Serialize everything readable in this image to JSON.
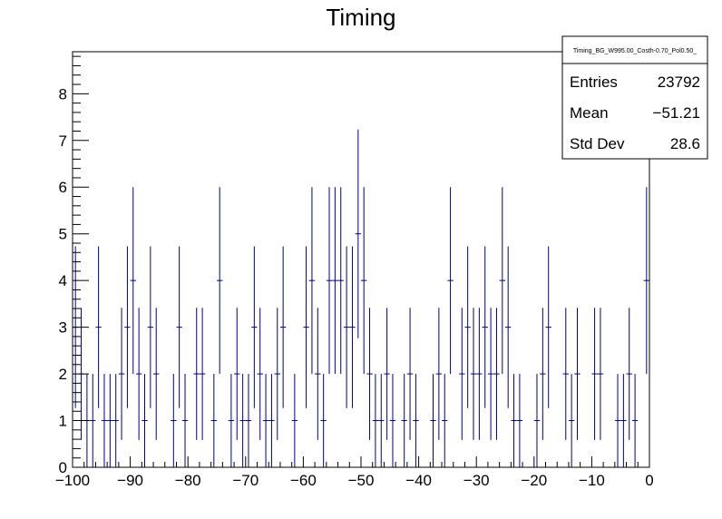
{
  "chart_data": {
    "type": "histogram",
    "title": "Timing",
    "xlabel": "",
    "ylabel": "",
    "xlim": [
      -100,
      0
    ],
    "ylim": [
      0,
      8.9
    ],
    "x_ticks": [
      "−100",
      "−90",
      "−80",
      "−70",
      "−60",
      "−50",
      "−40",
      "−30",
      "−20",
      "−10",
      "0"
    ],
    "y_ticks": [
      "0",
      "1",
      "2",
      "3",
      "4",
      "5",
      "6",
      "7",
      "8"
    ],
    "bin_width": 1,
    "bin_low_edges": [
      -100,
      -99,
      -98,
      -97,
      -96,
      -95,
      -94,
      -93,
      -92,
      -91,
      -90,
      -89,
      -88,
      -87,
      -86,
      -85,
      -84,
      -83,
      -82,
      -81,
      -80,
      -79,
      -78,
      -77,
      -76,
      -75,
      -74,
      -73,
      -72,
      -71,
      -70,
      -69,
      -68,
      -67,
      -66,
      -65,
      -64,
      -63,
      -62,
      -61,
      -60,
      -59,
      -58,
      -57,
      -56,
      -55,
      -54,
      -53,
      -52,
      -51,
      -50,
      -49,
      -48,
      -47,
      -46,
      -45,
      -44,
      -43,
      -42,
      -41,
      -40,
      -39,
      -38,
      -37,
      -36,
      -35,
      -34,
      -33,
      -32,
      -31,
      -30,
      -29,
      -28,
      -27,
      -26,
      -25,
      -24,
      -23,
      -22,
      -21,
      -20,
      -19,
      -18,
      -17,
      -16,
      -15,
      -14,
      -13,
      -12,
      -11,
      -10,
      -9,
      -8,
      -7,
      -6,
      -5,
      -4,
      -3,
      -2,
      -1
    ],
    "values": [
      3,
      2,
      1,
      1,
      3,
      1,
      1,
      1,
      2,
      3,
      4,
      2,
      1,
      3,
      2,
      0,
      0,
      1,
      3,
      1,
      0,
      2,
      2,
      0,
      1,
      4,
      0,
      1,
      2,
      1,
      1,
      3,
      2,
      1,
      1,
      2,
      3,
      0,
      1,
      0,
      3,
      4,
      2,
      1,
      4,
      4,
      4,
      3,
      3,
      5,
      4,
      2,
      1,
      1,
      2,
      1,
      0,
      1,
      2,
      1,
      0,
      0,
      1,
      2,
      1,
      4,
      0,
      2,
      3,
      2,
      2,
      3,
      2,
      2,
      4,
      3,
      1,
      1,
      0,
      0,
      1,
      2,
      3,
      0,
      0,
      2,
      1,
      2,
      0,
      0,
      2,
      2,
      0,
      0,
      1,
      1,
      2,
      1,
      0,
      4
    ],
    "legend_position": "top-right",
    "stats_box": {
      "title": "Timing_BG_W995.00_Costh-0.70_Pol0.50_",
      "rows": [
        {
          "label": "Entries",
          "value": "23792"
        },
        {
          "label": "Mean",
          "value": "−51.21"
        },
        {
          "label": "Std Dev",
          "value": "28.6"
        }
      ]
    },
    "colors": {
      "series": "#000080",
      "axis": "#000000",
      "background": "#ffffff"
    }
  }
}
